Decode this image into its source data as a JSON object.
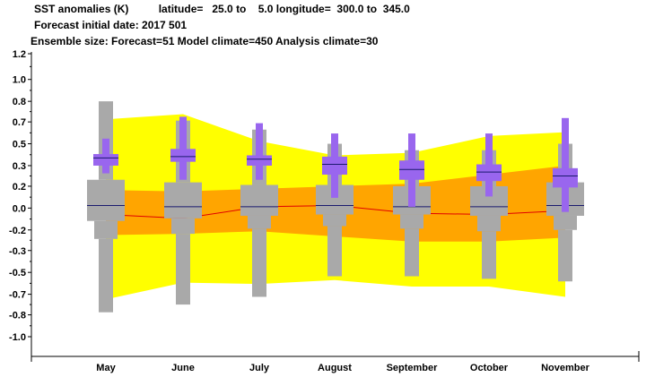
{
  "header": {
    "line1": "SST anomalies (K)          latitude=   25.0 to    5.0 longitude=  300.0 to  345.0",
    "line2": "Forecast initial date: 2017 501",
    "line3": "Ensemble size: Forecast=51 Model climate=450 Analysis climate=30"
  },
  "chart_data": {
    "type": "box",
    "title": "SST anomalies (K)",
    "categories": [
      "May",
      "June",
      "July",
      "August",
      "September",
      "October",
      "November"
    ],
    "ylim": [
      -1.2,
      1.2
    ],
    "yticks": [
      "1.2",
      "1.0",
      "0.8",
      "0.7",
      "0.5",
      "0.3",
      "0.2",
      "0.0",
      "-0.2",
      "-0.3",
      "-0.5",
      "-0.7",
      "-0.8",
      "-1.0"
    ],
    "ytick_values": [
      1.2,
      1.0,
      0.83,
      0.67,
      0.5,
      0.33,
      0.17,
      0.0,
      -0.17,
      -0.33,
      -0.5,
      -0.67,
      -0.83,
      -1.0
    ],
    "climate_outer_band": {
      "upper": [
        0.69,
        0.73,
        0.52,
        0.41,
        0.43,
        0.56,
        0.59
      ],
      "lower": [
        -0.71,
        -0.58,
        -0.59,
        -0.56,
        -0.61,
        -0.61,
        -0.69
      ]
    },
    "climate_inner_band": {
      "upper": [
        0.14,
        0.13,
        0.15,
        0.17,
        0.19,
        0.26,
        0.33
      ],
      "lower": [
        -0.21,
        -0.2,
        -0.18,
        -0.22,
        -0.26,
        -0.26,
        -0.23
      ]
    },
    "climate_median_line": [
      -0.05,
      -0.08,
      0.01,
      0.02,
      -0.04,
      -0.05,
      -0.02
    ],
    "model_climate_boxes": [
      {
        "whisker_low": -0.81,
        "p10": -0.24,
        "p25": -0.1,
        "median": 0.02,
        "p75": 0.22,
        "p90": 0.22,
        "whisker_high": 0.83
      },
      {
        "whisker_low": -0.75,
        "p10": -0.2,
        "p25": -0.08,
        "median": 0.01,
        "p75": 0.2,
        "p90": 0.2,
        "whisker_high": 0.68
      },
      {
        "whisker_low": -0.69,
        "p10": -0.16,
        "p25": -0.06,
        "median": 0.01,
        "p75": 0.18,
        "p90": 0.18,
        "whisker_high": 0.61
      },
      {
        "whisker_low": -0.53,
        "p10": -0.14,
        "p25": -0.05,
        "median": 0.02,
        "p75": 0.18,
        "p90": 0.18,
        "whisker_high": 0.5
      },
      {
        "whisker_low": -0.53,
        "p10": -0.16,
        "p25": -0.05,
        "median": 0.01,
        "p75": 0.17,
        "p90": 0.17,
        "whisker_high": 0.45
      },
      {
        "whisker_low": -0.55,
        "p10": -0.18,
        "p25": -0.06,
        "median": 0.01,
        "p75": 0.17,
        "p90": 0.17,
        "whisker_high": 0.45
      },
      {
        "whisker_low": -0.57,
        "p10": -0.17,
        "p25": -0.06,
        "median": 0.02,
        "p75": 0.2,
        "p90": 0.2,
        "whisker_high": 0.5
      }
    ],
    "forecast_boxes": [
      {
        "whisker_low": 0.27,
        "p25": 0.33,
        "median": 0.39,
        "p75": 0.42,
        "whisker_high": 0.54
      },
      {
        "whisker_low": 0.22,
        "p25": 0.36,
        "median": 0.4,
        "p75": 0.46,
        "whisker_high": 0.71
      },
      {
        "whisker_low": 0.22,
        "p25": 0.33,
        "median": 0.38,
        "p75": 0.41,
        "whisker_high": 0.66
      },
      {
        "whisker_low": 0.08,
        "p25": 0.26,
        "median": 0.34,
        "p75": 0.4,
        "whisker_high": 0.58
      },
      {
        "whisker_low": 0.01,
        "p25": 0.22,
        "median": 0.3,
        "p75": 0.37,
        "whisker_high": 0.58
      },
      {
        "whisker_low": 0.09,
        "p25": 0.21,
        "median": 0.28,
        "p75": 0.34,
        "whisker_high": 0.58
      },
      {
        "whisker_low": -0.03,
        "p25": 0.16,
        "median": 0.25,
        "p75": 0.31,
        "whisker_high": 0.7
      }
    ],
    "colors": {
      "outer_band": "#ffff00",
      "inner_band": "#ffa500",
      "median_line": "#e00000",
      "model_box": "#a9a9a9",
      "forecast_box": "#9966ee",
      "median_tick": "#1a1a6e"
    },
    "grid": false,
    "legend": "none"
  }
}
